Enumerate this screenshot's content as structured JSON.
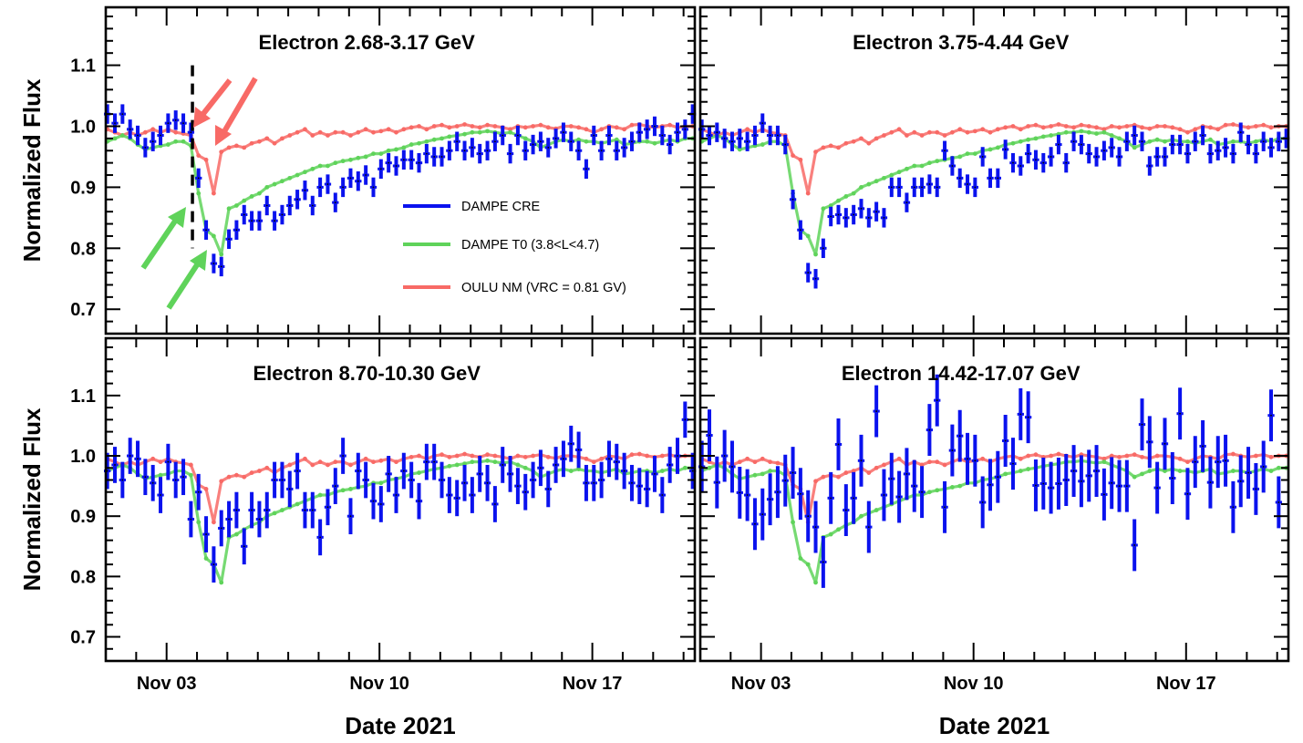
{
  "chart_data": {
    "type": "scatter",
    "xlabel": "Date 2021",
    "ylabel": "Normalized Flux",
    "xlim_day_of_nov": [
      1.0,
      20.37
    ],
    "ylim": [
      0.66,
      1.195
    ],
    "grid": false,
    "x_ticks": [
      {
        "day": 3,
        "label": "Nov 03"
      },
      {
        "day": 10,
        "label": "Nov 10"
      },
      {
        "day": 17,
        "label": "Nov 17"
      }
    ],
    "y_ticks": [
      {
        "value": 0.7,
        "label": "0.7"
      },
      {
        "value": 0.8,
        "label": "0.8"
      },
      {
        "value": 0.9,
        "label": "0.9"
      },
      {
        "value": 1.0,
        "label": "1.0"
      },
      {
        "value": 1.1,
        "label": "1.1"
      }
    ],
    "legend": {
      "placement": "center",
      "entries": [
        {
          "label": "DAMPE CRE",
          "color": "#0a12ee"
        },
        {
          "label": "DAMPE T0 (3.8<L<4.7)",
          "color": "#5fd35a"
        },
        {
          "label": "OULU NM (VRC = 0.81 GV)",
          "color": "#f86a66"
        }
      ]
    },
    "event_marker_day": 3.85,
    "x_start_day": 1.05,
    "x_step_day": 0.25,
    "shared_series": {
      "oulu_nm": {
        "name": "OULU NM (VRC = 0.81 GV)",
        "color": "#f86a66",
        "values": [
          0.995,
          0.99,
          0.985,
          0.99,
          0.985,
          0.99,
          0.995,
          0.99,
          0.995,
          0.99,
          0.988,
          0.985,
          0.952,
          0.945,
          0.89,
          0.958,
          0.965,
          0.968,
          0.965,
          0.972,
          0.975,
          0.98,
          0.972,
          0.98,
          0.985,
          0.99,
          0.995,
          0.985,
          0.99,
          0.985,
          0.99,
          0.99,
          0.985,
          0.99,
          0.995,
          0.99,
          0.992,
          0.995,
          0.99,
          0.995,
          0.998,
          1.0,
          0.995,
          1.0,
          1.002,
          0.998,
          1.0,
          1.003,
          1.0,
          0.998,
          1.002,
          1.0,
          0.998,
          0.995,
          1.0,
          0.998,
          1.0,
          1.002,
          0.998,
          0.996,
          1.0,
          1.0,
          0.998,
          0.995,
          0.99,
          0.995,
          1.0,
          0.998,
          0.995,
          1.002,
          1.003,
          1.0,
          0.998,
          1.0,
          1.002,
          0.998,
          1.0,
          1.0
        ]
      },
      "dampe_t0": {
        "name": "DAMPE T0 (3.8<L<4.7)",
        "color": "#5fd35a",
        "values": [
          0.975,
          0.98,
          0.985,
          0.98,
          0.97,
          0.962,
          0.965,
          0.968,
          0.97,
          0.975,
          0.975,
          0.968,
          0.89,
          0.83,
          0.82,
          0.79,
          0.865,
          0.87,
          0.878,
          0.885,
          0.89,
          0.9,
          0.905,
          0.91,
          0.915,
          0.92,
          0.925,
          0.93,
          0.935,
          0.935,
          0.94,
          0.943,
          0.945,
          0.948,
          0.95,
          0.955,
          0.955,
          0.96,
          0.962,
          0.965,
          0.97,
          0.972,
          0.975,
          0.978,
          0.98,
          0.983,
          0.985,
          0.987,
          0.99,
          0.99,
          0.992,
          0.99,
          0.988,
          0.99,
          0.985,
          0.98,
          0.975,
          0.965,
          0.97,
          0.975,
          0.978,
          0.975,
          0.978,
          0.975,
          0.975,
          0.972,
          0.975,
          0.978,
          0.97,
          0.972,
          0.975,
          0.975,
          0.972,
          0.975,
          0.978,
          0.975,
          0.98,
          0.98
        ]
      }
    },
    "panels": [
      {
        "title": "Electron 2.68-3.17 GeV",
        "cre_color": "#0a12ee",
        "cre_error": 0.016,
        "cre_values": [
          1.02,
          1.005,
          1.02,
          0.995,
          0.985,
          0.965,
          0.975,
          0.985,
          1.005,
          1.01,
          1.005,
          0.99,
          0.915,
          0.83,
          0.775,
          0.77,
          0.815,
          0.83,
          0.855,
          0.845,
          0.845,
          0.87,
          0.845,
          0.855,
          0.87,
          0.88,
          0.895,
          0.87,
          0.9,
          0.905,
          0.875,
          0.9,
          0.915,
          0.91,
          0.92,
          0.9,
          0.93,
          0.94,
          0.935,
          0.945,
          0.945,
          0.94,
          0.955,
          0.95,
          0.95,
          0.96,
          0.975,
          0.96,
          0.965,
          0.955,
          0.96,
          0.975,
          0.985,
          0.955,
          0.985,
          0.96,
          0.97,
          0.975,
          0.965,
          0.98,
          0.99,
          0.975,
          0.96,
          0.93,
          0.985,
          0.96,
          0.985,
          0.96,
          0.965,
          0.975,
          0.99,
          0.995,
          1.0,
          0.985,
          0.97,
          0.99,
          0.995,
          1.02
        ]
      },
      {
        "title": "Electron 3.75-4.44 GeV",
        "cre_color": "#0a12ee",
        "cre_error": 0.016,
        "cre_values": [
          0.995,
          0.985,
          0.99,
          0.98,
          0.975,
          0.98,
          0.975,
          0.985,
          1.005,
          0.985,
          0.985,
          0.97,
          0.88,
          0.83,
          0.76,
          0.75,
          0.8,
          0.852,
          0.855,
          0.85,
          0.855,
          0.865,
          0.85,
          0.86,
          0.85,
          0.9,
          0.9,
          0.875,
          0.9,
          0.9,
          0.905,
          0.9,
          0.96,
          0.935,
          0.915,
          0.905,
          0.9,
          0.95,
          0.915,
          0.915,
          0.962,
          0.94,
          0.935,
          0.955,
          0.945,
          0.94,
          0.95,
          0.97,
          0.94,
          0.975,
          0.97,
          0.955,
          0.95,
          0.96,
          0.965,
          0.95,
          0.975,
          0.985,
          0.975,
          0.935,
          0.95,
          0.95,
          0.97,
          0.97,
          0.955,
          0.975,
          0.985,
          0.955,
          0.96,
          0.965,
          0.955,
          0.99,
          0.97,
          0.955,
          0.975,
          0.965,
          0.975,
          0.98
        ]
      },
      {
        "title": "Electron 8.70-10.30 GeV",
        "cre_color": "#0a12ee",
        "cre_error": 0.03,
        "cre_values": [
          0.975,
          0.985,
          0.96,
          1.0,
          0.995,
          0.965,
          0.955,
          0.935,
          0.99,
          0.96,
          0.965,
          0.895,
          0.94,
          0.87,
          0.82,
          0.88,
          0.895,
          0.91,
          0.85,
          0.91,
          0.895,
          0.91,
          0.96,
          0.96,
          0.945,
          0.975,
          0.91,
          0.91,
          0.865,
          0.915,
          0.95,
          1.0,
          0.9,
          0.975,
          0.96,
          0.925,
          0.92,
          0.97,
          0.935,
          0.975,
          0.96,
          0.925,
          0.99,
          0.99,
          0.96,
          0.935,
          0.93,
          0.955,
          0.935,
          0.97,
          0.955,
          0.92,
          0.985,
          0.97,
          0.95,
          0.94,
          0.96,
          0.98,
          0.945,
          0.985,
          0.995,
          1.02,
          1.01,
          0.955,
          0.955,
          0.96,
          0.995,
          0.99,
          0.975,
          0.955,
          0.95,
          0.945,
          0.97,
          0.935,
          0.985,
          1.0,
          1.06,
          0.975
        ]
      },
      {
        "title": "Electron 14.42-17.07 GeV",
        "cre_color": "#0a12ee",
        "cre_error": 0.043,
        "cre_values": [
          0.982,
          1.034,
          0.956,
          1.0,
          0.982,
          0.939,
          0.935,
          0.887,
          0.903,
          0.928,
          0.94,
          0.959,
          0.972,
          0.937,
          0.9,
          0.882,
          0.824,
          0.93,
          1.019,
          0.91,
          0.93,
          0.992,
          0.882,
          1.074,
          0.935,
          0.962,
          0.932,
          0.97,
          0.95,
          0.94,
          1.043,
          1.092,
          0.915,
          1.009,
          1.033,
          0.995,
          0.992,
          0.923,
          0.952,
          0.965,
          1.025,
          0.987,
          1.069,
          1.064,
          0.951,
          0.954,
          0.947,
          0.954,
          0.96,
          0.975,
          0.958,
          0.967,
          0.975,
          0.936,
          0.955,
          0.95,
          0.95,
          0.852,
          1.052,
          1.023,
          0.947,
          1.02,
          0.963,
          1.07,
          0.937,
          0.99,
          1.016,
          0.956,
          0.99,
          0.992,
          0.915,
          0.958,
          0.972,
          0.945,
          0.982,
          1.067,
          0.923,
          null
        ]
      }
    ]
  }
}
